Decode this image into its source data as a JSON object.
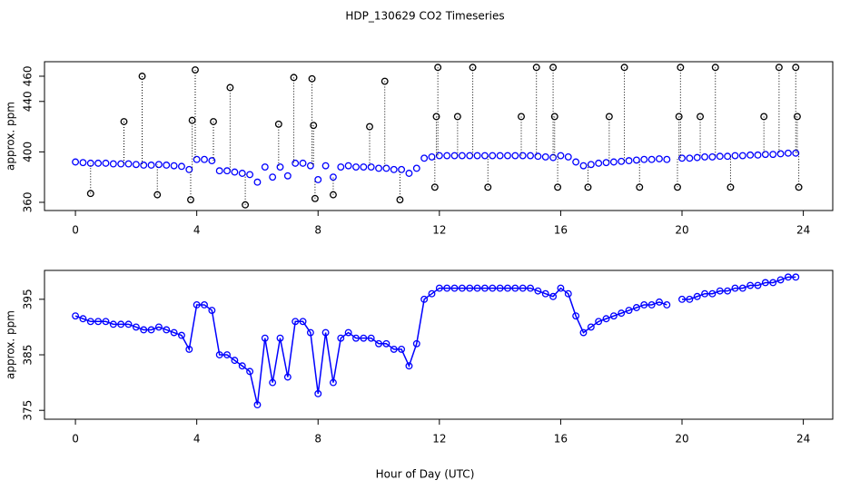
{
  "chart_data": [
    {
      "type": "scatter",
      "title": "HDP_130629  CO2 Timeseries",
      "ylabel": "approx. ppm",
      "x": [
        0,
        0.25,
        0.5,
        0.75,
        1,
        1.25,
        1.5,
        1.75,
        2,
        2.25,
        2.5,
        2.75,
        3,
        3.25,
        3.5,
        3.75,
        4,
        4.25,
        4.5,
        4.75,
        5,
        5.25,
        5.5,
        5.75,
        6,
        6.25,
        6.5,
        6.75,
        7,
        7.25,
        7.5,
        7.75,
        8,
        8.25,
        8.5,
        8.75,
        9,
        9.25,
        9.5,
        9.75,
        10,
        10.25,
        10.5,
        10.75,
        11,
        11.25,
        11.5,
        11.75,
        12,
        12.25,
        12.5,
        12.75,
        13,
        13.25,
        13.5,
        13.75,
        14,
        14.25,
        14.5,
        14.75,
        15,
        15.25,
        15.5,
        15.75,
        16,
        16.25,
        16.5,
        16.75,
        17,
        17.25,
        17.5,
        17.75,
        18,
        18.25,
        18.5,
        18.75,
        19,
        19.25,
        19.5,
        19.75,
        20,
        20.25,
        20.5,
        20.75,
        21,
        21.25,
        21.5,
        21.75,
        22,
        22.25,
        22.5,
        22.75,
        23,
        23.25,
        23.5,
        23.75
      ],
      "series": [
        {
          "color": "#0000ff",
          "values": [
            392,
            391.5,
            391,
            391,
            391,
            390.5,
            390.5,
            390.5,
            390,
            389.5,
            389.5,
            390,
            389.5,
            389,
            388.5,
            386,
            394,
            394,
            393,
            385,
            385,
            384,
            383,
            382,
            376,
            388,
            380,
            388,
            381,
            391,
            391,
            389,
            378,
            389,
            380,
            388,
            389,
            388,
            388,
            388,
            387,
            387,
            386,
            386,
            383,
            387,
            395,
            396,
            397,
            397,
            397,
            397,
            397,
            397,
            397,
            397,
            397,
            397,
            397,
            397,
            397,
            396.5,
            396,
            395.5,
            397,
            396,
            392,
            389,
            390,
            391,
            391.5,
            392,
            392.5,
            393,
            393.5,
            394,
            394,
            394.5,
            394,
            null,
            395,
            395,
            395.5,
            396,
            396,
            396.5,
            396.5,
            397,
            397,
            397.5,
            397.5,
            398,
            398,
            398.5,
            399,
            399
          ]
        },
        {
          "color": "#000000",
          "x": [
            0.5,
            1.6,
            2.2,
            2.7,
            3.8,
            3.85,
            3.95,
            4.55,
            5.1,
            5.6,
            6.7,
            7.2,
            7.8,
            7.85,
            7.9,
            8.5,
            9.7,
            10.2,
            10.7,
            11.85,
            11.9,
            11.95,
            12.6,
            13.1,
            13.6,
            14.7,
            15.2,
            15.75,
            15.8,
            15.9,
            16.9,
            17.6,
            18.1,
            18.6,
            19.85,
            19.9,
            19.95,
            20.6,
            21.1,
            21.6,
            22.7,
            23.2,
            23.75,
            23.8,
            23.85
          ],
          "values": [
            367,
            424,
            460,
            366,
            362,
            425,
            465,
            424,
            451,
            358,
            422,
            459,
            458,
            421,
            363,
            366,
            420,
            456,
            362,
            372,
            428,
            467,
            428,
            467,
            372,
            428,
            467,
            467,
            428,
            372,
            372,
            428,
            467,
            372,
            372,
            428,
            467,
            428,
            467,
            372,
            428,
            467,
            467,
            428,
            372
          ]
        }
      ],
      "xlim": [
        -1.02,
        24.97
      ],
      "ylim": [
        353.5,
        471.5
      ],
      "xticks": [
        0,
        4,
        8,
        12,
        16,
        20,
        24
      ],
      "yticks": [
        360,
        400,
        440,
        460
      ]
    },
    {
      "type": "line",
      "ylabel": "approx. ppm",
      "xlabel": "Hour of Day (UTC)",
      "x": [
        0,
        0.25,
        0.5,
        0.75,
        1,
        1.25,
        1.5,
        1.75,
        2,
        2.25,
        2.5,
        2.75,
        3,
        3.25,
        3.5,
        3.75,
        4,
        4.25,
        4.5,
        4.75,
        5,
        5.25,
        5.5,
        5.75,
        6,
        6.25,
        6.5,
        6.75,
        7,
        7.25,
        7.5,
        7.75,
        8,
        8.25,
        8.5,
        8.75,
        9,
        9.25,
        9.5,
        9.75,
        10,
        10.25,
        10.5,
        10.75,
        11,
        11.25,
        11.5,
        11.75,
        12,
        12.25,
        12.5,
        12.75,
        13,
        13.25,
        13.5,
        13.75,
        14,
        14.25,
        14.5,
        14.75,
        15,
        15.25,
        15.5,
        15.75,
        16,
        16.25,
        16.5,
        16.75,
        17,
        17.25,
        17.5,
        17.75,
        18,
        18.25,
        18.5,
        18.75,
        19,
        19.25,
        19.5,
        19.75,
        20,
        20.25,
        20.5,
        20.75,
        21,
        21.25,
        21.5,
        21.75,
        22,
        22.25,
        22.5,
        22.75,
        23,
        23.25,
        23.5,
        23.75
      ],
      "series": [
        {
          "color": "#0000ff",
          "values": [
            392,
            391.5,
            391,
            391,
            391,
            390.5,
            390.5,
            390.5,
            390,
            389.5,
            389.5,
            390,
            389.5,
            389,
            388.5,
            386,
            394,
            394,
            393,
            385,
            385,
            384,
            383,
            382,
            376,
            388,
            380,
            388,
            381,
            391,
            391,
            389,
            378,
            389,
            380,
            388,
            389,
            388,
            388,
            388,
            387,
            387,
            386,
            386,
            383,
            387,
            395,
            396,
            397,
            397,
            397,
            397,
            397,
            397,
            397,
            397,
            397,
            397,
            397,
            397,
            397,
            396.5,
            396,
            395.5,
            397,
            396,
            392,
            389,
            390,
            391,
            391.5,
            392,
            392.5,
            393,
            393.5,
            394,
            394,
            394.5,
            394,
            null,
            395,
            395,
            395.5,
            396,
            396,
            396.5,
            396.5,
            397,
            397,
            397.5,
            397.5,
            398,
            398,
            398.5,
            399,
            399
          ]
        }
      ],
      "xlim": [
        -1.02,
        24.97
      ],
      "ylim": [
        373.4,
        400.2
      ],
      "xticks": [
        0,
        4,
        8,
        12,
        16,
        20,
        24
      ],
      "yticks": [
        375,
        385,
        395
      ]
    }
  ]
}
